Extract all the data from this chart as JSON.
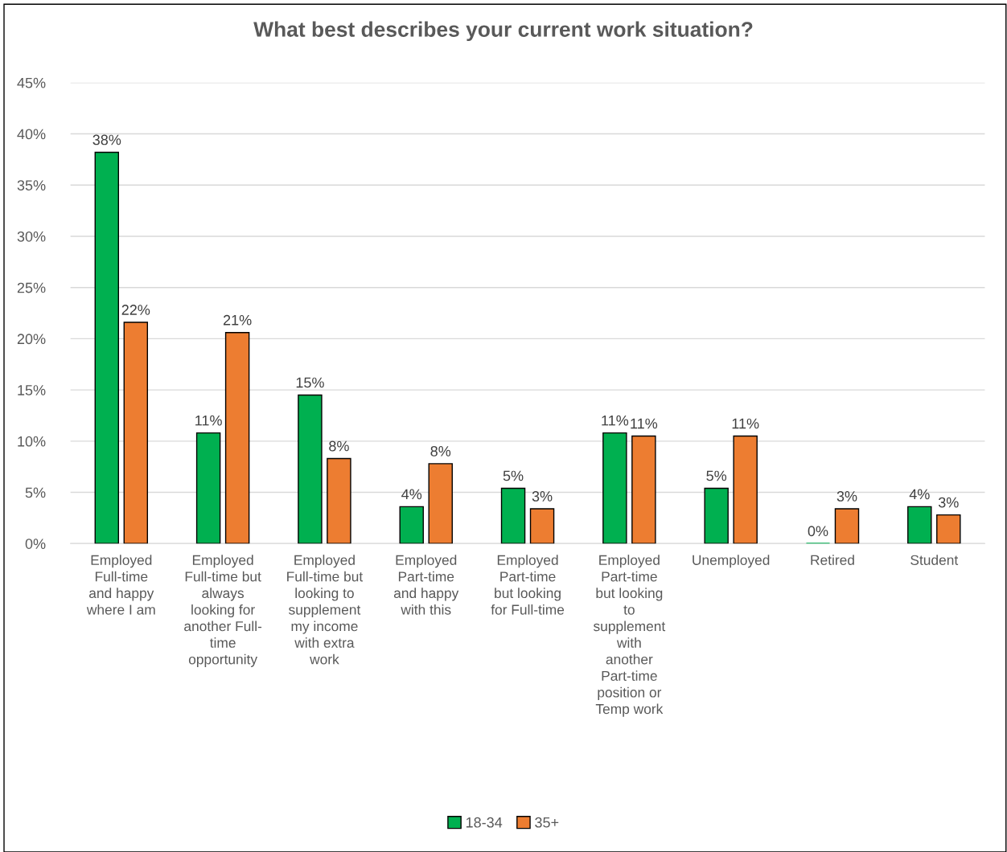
{
  "chart_data": {
    "type": "bar",
    "title": "What best describes your current work situation?",
    "categories": [
      "Employed\nFull-time\nand happy\nwhere I am",
      "Employed\nFull-time but\nalways\nlooking for\nanother Full-\ntime\nopportunity",
      "Employed\nFull-time but\nlooking to\nsupplement\nmy income\nwith extra\nwork",
      "Employed\nPart-time\nand happy\nwith this",
      "Employed\nPart-time\nbut looking\nfor Full-time",
      "Employed\nPart-time\nbut looking\nto\nsupplement\nwith\nanother\nPart-time\nposition or\nTemp work",
      "Unemployed",
      "Retired",
      "Student"
    ],
    "series": [
      {
        "name": "18-34",
        "color": "#00b050",
        "values": [
          38.2,
          10.8,
          14.5,
          3.6,
          5.4,
          10.8,
          5.4,
          0,
          3.6
        ],
        "value_labels": [
          "38%",
          "11%",
          "15%",
          "4%",
          "5%",
          "11%",
          "5%",
          "0%",
          "4%"
        ]
      },
      {
        "name": "35+",
        "color": "#ed7d31",
        "values": [
          21.6,
          20.6,
          8.3,
          7.8,
          3.4,
          10.5,
          10.5,
          3.4,
          2.8
        ],
        "value_labels": [
          "22%",
          "21%",
          "8%",
          "8%",
          "3%",
          "11%",
          "11%",
          "3%",
          "3%"
        ]
      }
    ],
    "ylim": [
      0,
      45
    ],
    "yticks": [
      {
        "value": 0,
        "label": "0%"
      },
      {
        "value": 5,
        "label": "5%"
      },
      {
        "value": 10,
        "label": "10%"
      },
      {
        "value": 15,
        "label": "15%"
      },
      {
        "value": 20,
        "label": "20%"
      },
      {
        "value": 25,
        "label": "25%"
      },
      {
        "value": 30,
        "label": "30%"
      },
      {
        "value": 35,
        "label": "35%"
      },
      {
        "value": 40,
        "label": "40%"
      },
      {
        "value": 45,
        "label": "45%"
      }
    ],
    "grid": "y",
    "legend": "bottom"
  }
}
